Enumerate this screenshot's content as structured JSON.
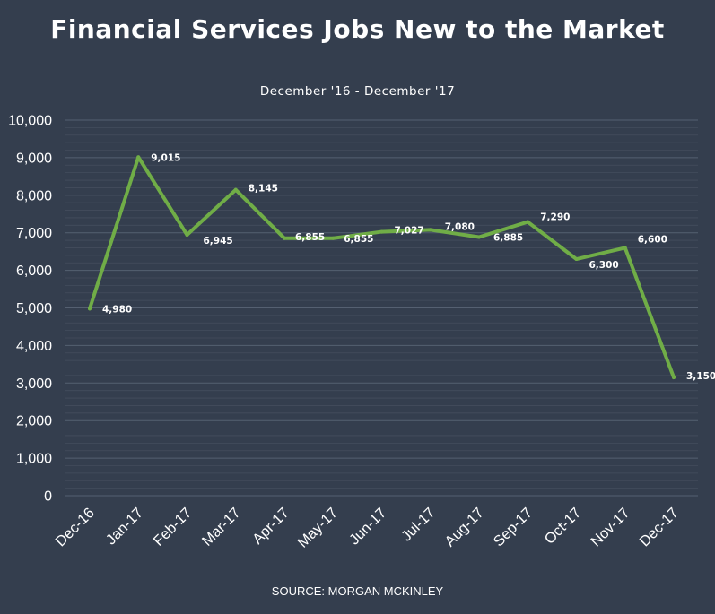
{
  "chart_data": {
    "type": "line",
    "title": "Financial Services Jobs New to the Market",
    "subtitle": "December '16 - December '17",
    "source": "SOURCE: MORGAN MCKINLEY",
    "xlabel": "",
    "ylabel": "",
    "ylim": [
      0,
      10000
    ],
    "yticks": [
      0,
      1000,
      2000,
      3000,
      4000,
      5000,
      6000,
      7000,
      8000,
      9000,
      10000
    ],
    "ytick_labels": [
      "0",
      "1,000",
      "2,000",
      "3,000",
      "4,000",
      "5,000",
      "6,000",
      "7,000",
      "8,000",
      "9,000",
      "10,000"
    ],
    "categories": [
      "Dec-16",
      "Jan-17",
      "Feb-17",
      "Mar-17",
      "Apr-17",
      "May-17",
      "Jun-17",
      "Jul-17",
      "Aug-17",
      "Sep-17",
      "Oct-17",
      "Nov-17",
      "Dec-17"
    ],
    "values": [
      4980,
      9015,
      6945,
      8145,
      6855,
      6855,
      7027,
      7080,
      6885,
      7290,
      6300,
      6600,
      3150
    ],
    "data_labels": [
      "4,980",
      "9,015",
      "6,945",
      "8,145",
      "6,855",
      "6,855",
      "7,027",
      "7,080",
      "6,885",
      "7,290",
      "6,300",
      "6,600",
      "3,150"
    ],
    "grid": true,
    "colors": {
      "background": "#343e4e",
      "line": "#70ad47",
      "gridline": "#4d5768",
      "text": "#ffffff"
    }
  }
}
